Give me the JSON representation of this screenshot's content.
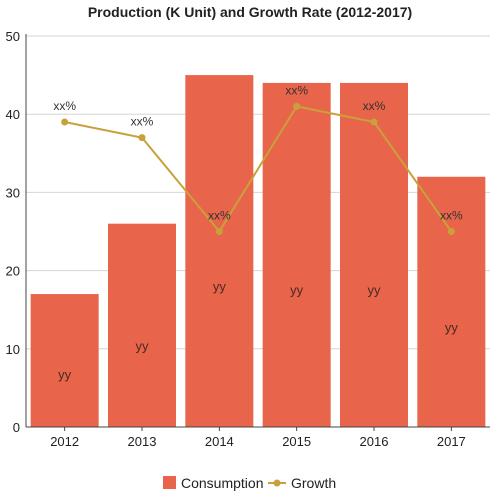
{
  "chart_data": {
    "type": "bar",
    "title": "Production (K Unit) and Growth Rate (2012-2017)",
    "categories": [
      "2012",
      "2013",
      "2014",
      "2015",
      "2016",
      "2017"
    ],
    "ylim": [
      0,
      50
    ],
    "yticks": [
      0,
      10,
      20,
      30,
      40,
      50
    ],
    "grid": true,
    "legend_position": "bottom",
    "series": [
      {
        "name": "Consumption",
        "type": "bar",
        "color": "#e8644a",
        "values": [
          17,
          26,
          45,
          44,
          44,
          32
        ],
        "labels": [
          "yy",
          "yy",
          "yy",
          "yy",
          "yy",
          "yy"
        ]
      },
      {
        "name": "Growth",
        "type": "line",
        "color": "#c9a13b",
        "values": [
          39,
          37,
          25,
          41,
          39,
          25
        ],
        "labels": [
          "xx%",
          "xx%",
          "xx%",
          "xx%",
          "xx%",
          "xx%"
        ]
      }
    ]
  }
}
